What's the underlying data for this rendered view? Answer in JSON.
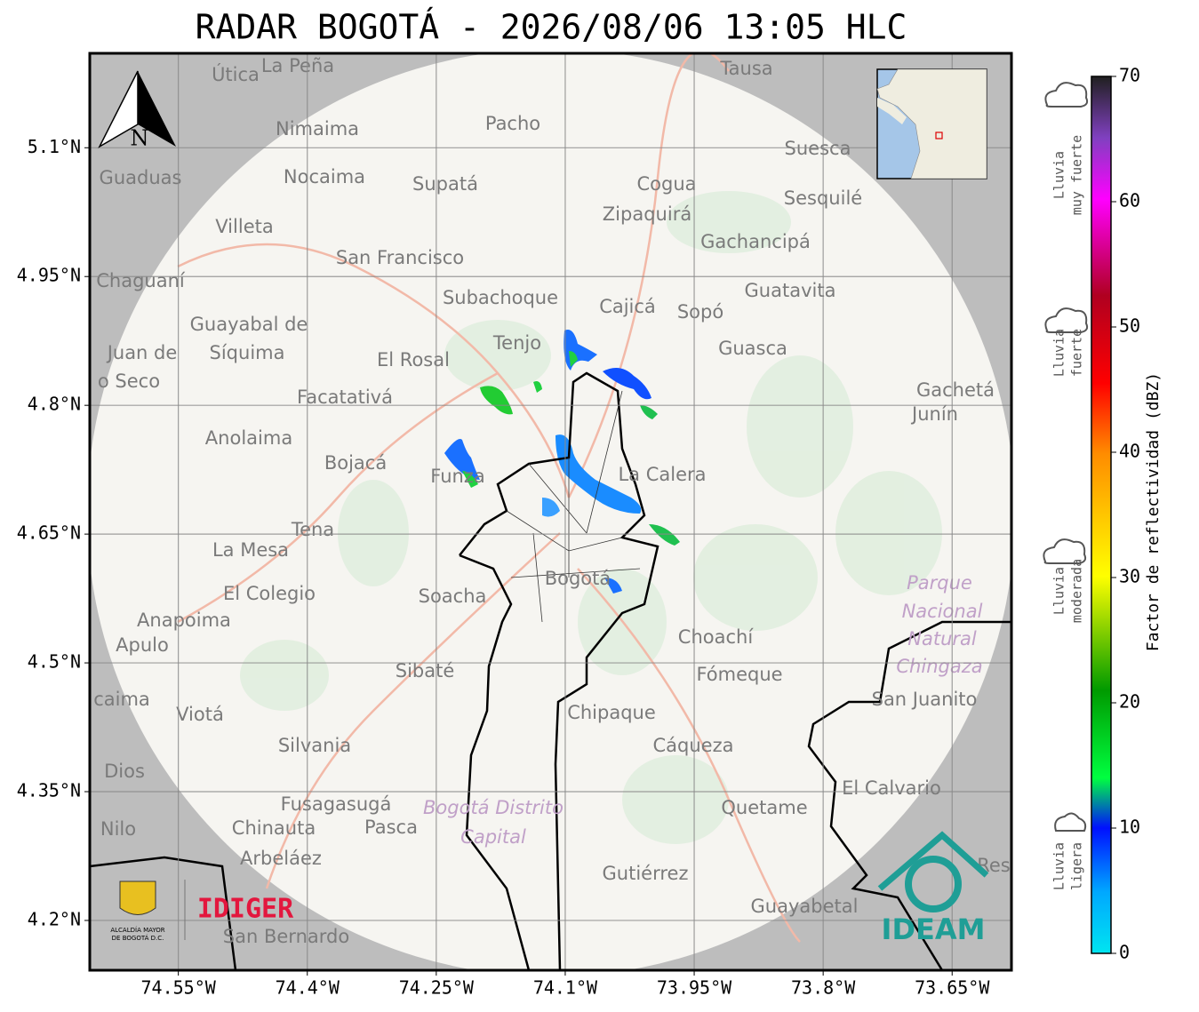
{
  "title": "RADAR BOGOTÁ - 2026/08/06 13:05 HLC",
  "map": {
    "xlim": [
      -74.653,
      -73.581
    ],
    "ylim": [
      4.142,
      5.21
    ],
    "xticks": [
      {
        "value": -74.55,
        "label": "74.55°W"
      },
      {
        "value": -74.4,
        "label": "74.4°W"
      },
      {
        "value": -74.25,
        "label": "74.25°W"
      },
      {
        "value": -74.1,
        "label": "74.1°W"
      },
      {
        "value": -73.95,
        "label": "73.95°W"
      },
      {
        "value": -73.8,
        "label": "73.8°W"
      },
      {
        "value": -73.65,
        "label": "73.65°W"
      }
    ],
    "yticks": [
      {
        "value": 4.2,
        "label": "4.2°N"
      },
      {
        "value": 4.35,
        "label": "4.35°N"
      },
      {
        "value": 4.5,
        "label": "4.5°N"
      },
      {
        "value": 4.65,
        "label": "4.65°N"
      },
      {
        "value": 4.8,
        "label": "4.8°N"
      },
      {
        "value": 4.95,
        "label": "4.95°N"
      },
      {
        "value": 5.1,
        "label": "5.1°N"
      }
    ],
    "grid": true,
    "north_label": "N",
    "places": [
      "Útica",
      "La Peña",
      "Tausa",
      "Pacho",
      "Nimaima",
      "Suesca",
      "Guaduas",
      "Nocaima",
      "Supatá",
      "Cogua",
      "Sesquilé",
      "Zipaquirá",
      "Villeta",
      "Gachancipá",
      "San Francisco",
      "Chaguaní",
      "Guatavita",
      "Subachoque",
      "Cajicá",
      "Sopó",
      "Guayabal de",
      "Tenjo",
      "Guasca",
      "Juan de",
      "Síquima",
      "El Rosal",
      "o Seco",
      "Facatativá",
      "Gachetá",
      "Junín",
      "Anolaima",
      "Bojacá",
      "La Calera",
      "Funza",
      "Tena",
      "La Mesa",
      "Parque",
      "Soacha",
      "Bogotá",
      "El Colegio",
      "Nacional",
      "Anapoima",
      "Apulo",
      "Natural",
      "Choachí",
      "Chingaza",
      "Sibaté",
      "Fómeque",
      "San Juanito",
      "Viotá",
      "caima",
      "Chipaque",
      "Silvania",
      "Cáqueza",
      "Dios",
      "El Calvario",
      "Fusagasugá",
      "Bogotá Distrito",
      "Quetame",
      "Nilo",
      "Chinauta",
      "Pasca",
      "Capital",
      "Arbeláez",
      "Gutiérrez",
      "Res",
      "Guayabetal",
      "San Bernardo"
    ]
  },
  "colorbar": {
    "label": "Factor de reflectividad (dBZ)",
    "lim": [
      0,
      70
    ],
    "ticks": [
      0,
      10,
      20,
      30,
      40,
      50,
      60,
      70
    ]
  },
  "legend": [
    {
      "lines": [
        "Lluvia",
        "muy fuerte"
      ]
    },
    {
      "lines": [
        "Lluvia",
        "fuerte"
      ]
    },
    {
      "lines": [
        "Lluvia",
        "moderada"
      ]
    },
    {
      "lines": [
        "Lluvia",
        "ligera"
      ]
    }
  ],
  "logos": {
    "alcaldia": [
      "ALCALDÍA MAYOR",
      "DE BOGOTÁ D.C."
    ],
    "idiger": "IDIGER",
    "ideam": "IDEAM"
  }
}
